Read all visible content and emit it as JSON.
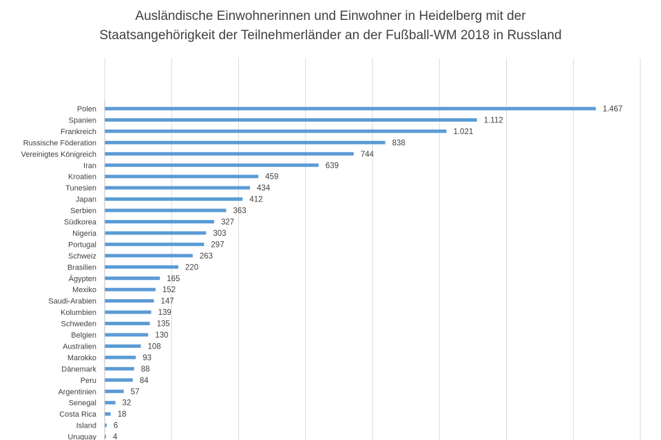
{
  "chart_data": {
    "type": "bar",
    "orientation": "horizontal",
    "title": "Ausländische Einwohnerinnen und Einwohner in Heidelberg mit der Staatsangehörigkeit der Teilnehmerländer an der Fußball-WM 2018 in Russland",
    "title_lines": [
      "Ausländische Einwohnerinnen und Einwohner in Heidelberg mit der",
      "Staatsangehörigkeit der Teilnehmerländer an der Fußball-WM 2018 in Russland"
    ],
    "xlabel": "",
    "ylabel": "",
    "xlim": [
      0,
      1600
    ],
    "grid": true,
    "legend": "none",
    "bar_color": "#5b9bd5",
    "categories": [
      "Polen",
      "Spanien",
      "Frankreich",
      "Russische Föderation",
      "Vereinigtes Königreich",
      "Iran",
      "Kroatien",
      "Tunesien",
      "Japan",
      "Serbien",
      "Südkorea",
      "Nigeria",
      "Portugal",
      "Schweiz",
      "Brasilien",
      "Ägypten",
      "Mexiko",
      "Saudi-Arabien",
      "Kolumbien",
      "Schweden",
      "Belgien",
      "Australien",
      "Marokko",
      "Dänemark",
      "Peru",
      "Argentinien",
      "Senegal",
      "Costa Rica",
      "Island",
      "Uruguay"
    ],
    "values": [
      1467,
      1112,
      1021,
      838,
      744,
      639,
      459,
      434,
      412,
      363,
      327,
      303,
      297,
      263,
      220,
      165,
      152,
      147,
      139,
      135,
      130,
      108,
      93,
      88,
      84,
      57,
      32,
      18,
      6,
      4
    ],
    "value_labels": [
      "1.467",
      "1.112",
      "1.021",
      "838",
      "744",
      "639",
      "459",
      "434",
      "412",
      "363",
      "327",
      "303",
      "297",
      "263",
      "220",
      "165",
      "152",
      "147",
      "139",
      "135",
      "130",
      "108",
      "93",
      "88",
      "84",
      "57",
      "32",
      "18",
      "6",
      "4"
    ]
  }
}
